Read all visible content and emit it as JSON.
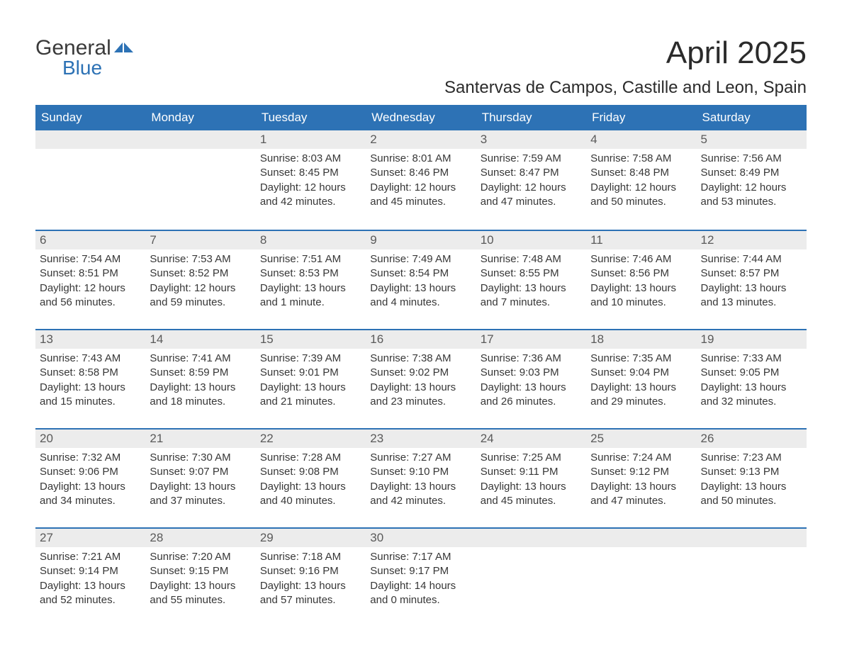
{
  "brand": {
    "name1": "General",
    "name2": "Blue",
    "color": "#2d72b5"
  },
  "title": "April 2025",
  "location": "Santervas de Campos, Castille and Leon, Spain",
  "day_names": [
    "Sunday",
    "Monday",
    "Tuesday",
    "Wednesday",
    "Thursday",
    "Friday",
    "Saturday"
  ],
  "colors": {
    "header_bg": "#2d72b5",
    "header_text": "#ffffff",
    "daynum_bg": "#ececec",
    "text": "#373737",
    "rule": "#2d72b5"
  },
  "fonts": {
    "title_size_pt": 34,
    "location_size_pt": 18,
    "body_size_pt": 11
  },
  "weeks": [
    [
      {
        "n": "",
        "lines": [
          "",
          "",
          "",
          ""
        ]
      },
      {
        "n": "",
        "lines": [
          "",
          "",
          "",
          ""
        ]
      },
      {
        "n": "1",
        "lines": [
          "Sunrise: 8:03 AM",
          "Sunset: 8:45 PM",
          "Daylight: 12 hours",
          "and 42 minutes."
        ]
      },
      {
        "n": "2",
        "lines": [
          "Sunrise: 8:01 AM",
          "Sunset: 8:46 PM",
          "Daylight: 12 hours",
          "and 45 minutes."
        ]
      },
      {
        "n": "3",
        "lines": [
          "Sunrise: 7:59 AM",
          "Sunset: 8:47 PM",
          "Daylight: 12 hours",
          "and 47 minutes."
        ]
      },
      {
        "n": "4",
        "lines": [
          "Sunrise: 7:58 AM",
          "Sunset: 8:48 PM",
          "Daylight: 12 hours",
          "and 50 minutes."
        ]
      },
      {
        "n": "5",
        "lines": [
          "Sunrise: 7:56 AM",
          "Sunset: 8:49 PM",
          "Daylight: 12 hours",
          "and 53 minutes."
        ]
      }
    ],
    [
      {
        "n": "6",
        "lines": [
          "Sunrise: 7:54 AM",
          "Sunset: 8:51 PM",
          "Daylight: 12 hours",
          "and 56 minutes."
        ]
      },
      {
        "n": "7",
        "lines": [
          "Sunrise: 7:53 AM",
          "Sunset: 8:52 PM",
          "Daylight: 12 hours",
          "and 59 minutes."
        ]
      },
      {
        "n": "8",
        "lines": [
          "Sunrise: 7:51 AM",
          "Sunset: 8:53 PM",
          "Daylight: 13 hours",
          "and 1 minute."
        ]
      },
      {
        "n": "9",
        "lines": [
          "Sunrise: 7:49 AM",
          "Sunset: 8:54 PM",
          "Daylight: 13 hours",
          "and 4 minutes."
        ]
      },
      {
        "n": "10",
        "lines": [
          "Sunrise: 7:48 AM",
          "Sunset: 8:55 PM",
          "Daylight: 13 hours",
          "and 7 minutes."
        ]
      },
      {
        "n": "11",
        "lines": [
          "Sunrise: 7:46 AM",
          "Sunset: 8:56 PM",
          "Daylight: 13 hours",
          "and 10 minutes."
        ]
      },
      {
        "n": "12",
        "lines": [
          "Sunrise: 7:44 AM",
          "Sunset: 8:57 PM",
          "Daylight: 13 hours",
          "and 13 minutes."
        ]
      }
    ],
    [
      {
        "n": "13",
        "lines": [
          "Sunrise: 7:43 AM",
          "Sunset: 8:58 PM",
          "Daylight: 13 hours",
          "and 15 minutes."
        ]
      },
      {
        "n": "14",
        "lines": [
          "Sunrise: 7:41 AM",
          "Sunset: 8:59 PM",
          "Daylight: 13 hours",
          "and 18 minutes."
        ]
      },
      {
        "n": "15",
        "lines": [
          "Sunrise: 7:39 AM",
          "Sunset: 9:01 PM",
          "Daylight: 13 hours",
          "and 21 minutes."
        ]
      },
      {
        "n": "16",
        "lines": [
          "Sunrise: 7:38 AM",
          "Sunset: 9:02 PM",
          "Daylight: 13 hours",
          "and 23 minutes."
        ]
      },
      {
        "n": "17",
        "lines": [
          "Sunrise: 7:36 AM",
          "Sunset: 9:03 PM",
          "Daylight: 13 hours",
          "and 26 minutes."
        ]
      },
      {
        "n": "18",
        "lines": [
          "Sunrise: 7:35 AM",
          "Sunset: 9:04 PM",
          "Daylight: 13 hours",
          "and 29 minutes."
        ]
      },
      {
        "n": "19",
        "lines": [
          "Sunrise: 7:33 AM",
          "Sunset: 9:05 PM",
          "Daylight: 13 hours",
          "and 32 minutes."
        ]
      }
    ],
    [
      {
        "n": "20",
        "lines": [
          "Sunrise: 7:32 AM",
          "Sunset: 9:06 PM",
          "Daylight: 13 hours",
          "and 34 minutes."
        ]
      },
      {
        "n": "21",
        "lines": [
          "Sunrise: 7:30 AM",
          "Sunset: 9:07 PM",
          "Daylight: 13 hours",
          "and 37 minutes."
        ]
      },
      {
        "n": "22",
        "lines": [
          "Sunrise: 7:28 AM",
          "Sunset: 9:08 PM",
          "Daylight: 13 hours",
          "and 40 minutes."
        ]
      },
      {
        "n": "23",
        "lines": [
          "Sunrise: 7:27 AM",
          "Sunset: 9:10 PM",
          "Daylight: 13 hours",
          "and 42 minutes."
        ]
      },
      {
        "n": "24",
        "lines": [
          "Sunrise: 7:25 AM",
          "Sunset: 9:11 PM",
          "Daylight: 13 hours",
          "and 45 minutes."
        ]
      },
      {
        "n": "25",
        "lines": [
          "Sunrise: 7:24 AM",
          "Sunset: 9:12 PM",
          "Daylight: 13 hours",
          "and 47 minutes."
        ]
      },
      {
        "n": "26",
        "lines": [
          "Sunrise: 7:23 AM",
          "Sunset: 9:13 PM",
          "Daylight: 13 hours",
          "and 50 minutes."
        ]
      }
    ],
    [
      {
        "n": "27",
        "lines": [
          "Sunrise: 7:21 AM",
          "Sunset: 9:14 PM",
          "Daylight: 13 hours",
          "and 52 minutes."
        ]
      },
      {
        "n": "28",
        "lines": [
          "Sunrise: 7:20 AM",
          "Sunset: 9:15 PM",
          "Daylight: 13 hours",
          "and 55 minutes."
        ]
      },
      {
        "n": "29",
        "lines": [
          "Sunrise: 7:18 AM",
          "Sunset: 9:16 PM",
          "Daylight: 13 hours",
          "and 57 minutes."
        ]
      },
      {
        "n": "30",
        "lines": [
          "Sunrise: 7:17 AM",
          "Sunset: 9:17 PM",
          "Daylight: 14 hours",
          "and 0 minutes."
        ]
      },
      {
        "n": "",
        "lines": [
          "",
          "",
          "",
          ""
        ]
      },
      {
        "n": "",
        "lines": [
          "",
          "",
          "",
          ""
        ]
      },
      {
        "n": "",
        "lines": [
          "",
          "",
          "",
          ""
        ]
      }
    ]
  ]
}
